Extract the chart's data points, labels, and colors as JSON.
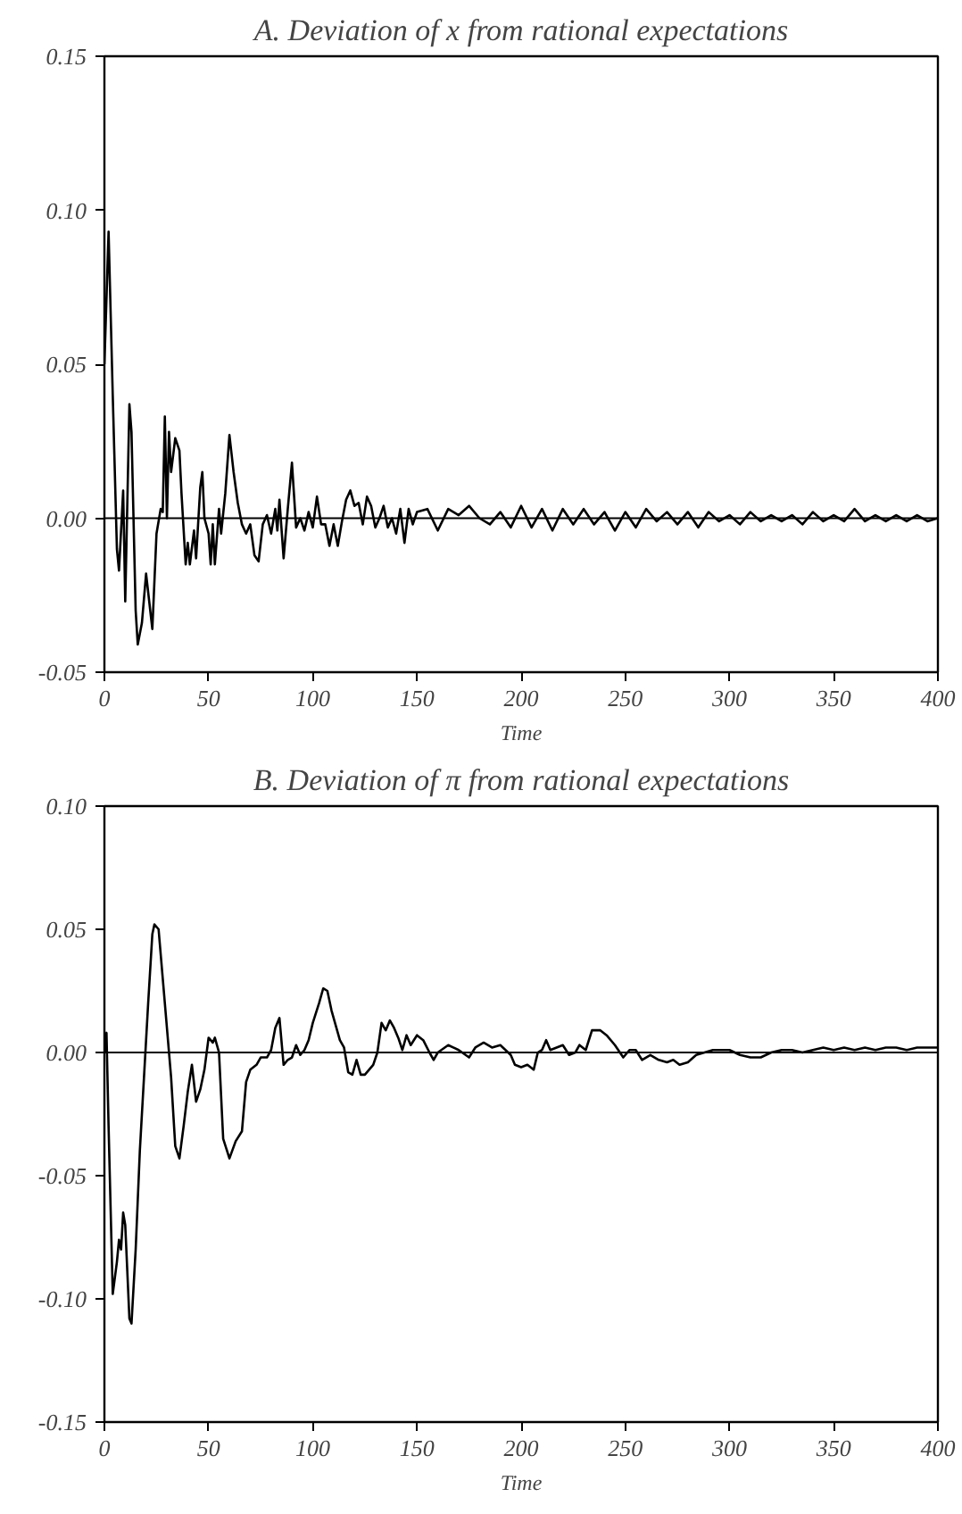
{
  "chart_data": [
    {
      "type": "line",
      "title": "A. Deviation of x from rational expectations",
      "xlabel": "Time",
      "xlim": [
        0,
        400
      ],
      "xticks": [
        0,
        50,
        100,
        150,
        200,
        250,
        300,
        350,
        400
      ],
      "ylim": [
        -0.05,
        0.15
      ],
      "yticks": [
        {
          "value": -0.05,
          "label": "-0.05"
        },
        {
          "value": 0,
          "label": "0.00"
        },
        {
          "value": 0.05,
          "label": "0.05"
        },
        {
          "value": 0.1,
          "label": "0.10"
        },
        {
          "value": 0.15,
          "label": "0.15"
        }
      ],
      "grid": false,
      "marker": "none",
      "line_style": "solid",
      "ref_lines": [
        {
          "axis": "y",
          "value": 0,
          "label": null,
          "color": "#000000"
        }
      ],
      "series": [
        {
          "color": "#000000",
          "x": [
            0,
            2,
            4,
            6,
            7,
            9,
            10,
            12,
            13,
            15,
            16,
            18,
            20,
            22,
            23,
            25,
            27,
            28,
            29,
            30,
            31,
            32,
            34,
            36,
            37,
            39,
            40,
            41,
            43,
            44,
            46,
            47,
            48,
            50,
            51,
            52,
            53,
            55,
            56,
            58,
            60,
            62,
            64,
            66,
            68,
            70,
            72,
            74,
            76,
            78,
            80,
            82,
            83,
            84,
            86,
            88,
            90,
            92,
            94,
            96,
            98,
            100,
            102,
            104,
            106,
            108,
            110,
            112,
            114,
            116,
            118,
            120,
            122,
            124,
            126,
            128,
            130,
            132,
            134,
            136,
            138,
            140,
            142,
            144,
            146,
            148,
            150,
            155,
            160,
            165,
            170,
            175,
            180,
            185,
            190,
            195,
            200,
            205,
            210,
            215,
            220,
            225,
            230,
            235,
            240,
            245,
            250,
            255,
            260,
            265,
            270,
            275,
            280,
            285,
            290,
            295,
            300,
            305,
            310,
            315,
            320,
            325,
            330,
            335,
            340,
            345,
            350,
            355,
            360,
            365,
            370,
            375,
            380,
            385,
            390,
            395,
            400
          ],
          "values": [
            0.05,
            0.093,
            0.04,
            -0.01,
            -0.017,
            0.009,
            -0.027,
            0.037,
            0.028,
            -0.03,
            -0.041,
            -0.034,
            -0.018,
            -0.03,
            -0.036,
            -0.005,
            0.003,
            0.002,
            0.033,
            0.0,
            0.028,
            0.015,
            0.026,
            0.022,
            0.008,
            -0.015,
            -0.008,
            -0.015,
            -0.004,
            -0.013,
            0.01,
            0.015,
            0.0,
            -0.005,
            -0.015,
            -0.002,
            -0.015,
            0.003,
            -0.005,
            0.008,
            0.027,
            0.015,
            0.005,
            -0.002,
            -0.005,
            -0.002,
            -0.012,
            -0.014,
            -0.002,
            0.001,
            -0.005,
            0.003,
            -0.004,
            0.006,
            -0.013,
            0.003,
            0.018,
            -0.003,
            0.0,
            -0.004,
            0.002,
            -0.003,
            0.007,
            -0.002,
            -0.002,
            -0.009,
            -0.002,
            -0.009,
            -0.001,
            0.006,
            0.009,
            0.004,
            0.005,
            -0.002,
            0.007,
            0.004,
            -0.003,
            0.0,
            0.004,
            -0.003,
            0.0,
            -0.005,
            0.003,
            -0.008,
            0.003,
            -0.002,
            0.002,
            0.003,
            -0.004,
            0.003,
            0.001,
            0.004,
            0.0,
            -0.002,
            0.002,
            -0.003,
            0.004,
            -0.003,
            0.003,
            -0.004,
            0.003,
            -0.002,
            0.003,
            -0.002,
            0.002,
            -0.004,
            0.002,
            -0.003,
            0.003,
            -0.001,
            0.002,
            -0.002,
            0.002,
            -0.003,
            0.002,
            -0.001,
            0.001,
            -0.002,
            0.002,
            -0.001,
            0.001,
            -0.001,
            0.001,
            -0.002,
            0.002,
            -0.001,
            0.001,
            -0.001,
            0.003,
            -0.001,
            0.001,
            -0.001,
            0.001,
            -0.001,
            0.001,
            -0.001,
            0.0
          ]
        }
      ]
    },
    {
      "type": "line",
      "title": "B. Deviation of π from rational expectations",
      "xlabel": "Time",
      "xlim": [
        0,
        400
      ],
      "xticks": [
        0,
        50,
        100,
        150,
        200,
        250,
        300,
        350,
        400
      ],
      "ylim": [
        -0.15,
        0.1
      ],
      "yticks": [
        {
          "value": -0.15,
          "label": "-0.15"
        },
        {
          "value": -0.1,
          "label": "-0.10"
        },
        {
          "value": -0.05,
          "label": "-0.05"
        },
        {
          "value": 0,
          "label": "0.00"
        },
        {
          "value": 0.05,
          "label": "0.05"
        },
        {
          "value": 0.1,
          "label": "0.10"
        }
      ],
      "grid": false,
      "marker": "none",
      "line_style": "solid",
      "ref_lines": [
        {
          "axis": "y",
          "value": 0,
          "label": null,
          "color": "#000000"
        }
      ],
      "series": [
        {
          "color": "#000000",
          "x": [
            0,
            1,
            2,
            4,
            6,
            7,
            8,
            9,
            10,
            12,
            13,
            15,
            17,
            19,
            21,
            23,
            24,
            26,
            28,
            30,
            32,
            34,
            36,
            38,
            40,
            42,
            44,
            46,
            48,
            50,
            52,
            53,
            55,
            57,
            60,
            63,
            66,
            68,
            70,
            73,
            75,
            78,
            80,
            82,
            84,
            86,
            88,
            90,
            92,
            94,
            96,
            98,
            100,
            103,
            105,
            107,
            109,
            111,
            113,
            115,
            117,
            119,
            121,
            123,
            125,
            127,
            129,
            131,
            133,
            135,
            137,
            139,
            141,
            143,
            145,
            147,
            150,
            153,
            156,
            158,
            160,
            165,
            170,
            175,
            178,
            182,
            186,
            190,
            195,
            197,
            200,
            203,
            206,
            208,
            210,
            212,
            214,
            217,
            220,
            223,
            226,
            228,
            231,
            234,
            238,
            241,
            245,
            249,
            252,
            255,
            258,
            262,
            266,
            270,
            273,
            276,
            280,
            284,
            288,
            292,
            296,
            300,
            305,
            310,
            315,
            320,
            325,
            330,
            335,
            340,
            345,
            350,
            355,
            360,
            365,
            370,
            375,
            380,
            385,
            390,
            395,
            400
          ],
          "values": [
            0.0,
            0.008,
            -0.03,
            -0.098,
            -0.085,
            -0.076,
            -0.08,
            -0.065,
            -0.07,
            -0.108,
            -0.11,
            -0.08,
            -0.04,
            -0.01,
            0.02,
            0.048,
            0.052,
            0.05,
            0.03,
            0.01,
            -0.01,
            -0.038,
            -0.043,
            -0.03,
            -0.016,
            -0.005,
            -0.02,
            -0.015,
            -0.007,
            0.006,
            0.004,
            0.006,
            0.0,
            -0.035,
            -0.043,
            -0.036,
            -0.032,
            -0.012,
            -0.007,
            -0.005,
            -0.002,
            -0.002,
            0.001,
            0.01,
            0.014,
            -0.005,
            -0.003,
            -0.002,
            0.003,
            -0.001,
            0.001,
            0.005,
            0.012,
            0.02,
            0.026,
            0.025,
            0.017,
            0.011,
            0.005,
            0.002,
            -0.008,
            -0.009,
            -0.003,
            -0.009,
            -0.009,
            -0.007,
            -0.005,
            0.0,
            0.012,
            0.009,
            0.013,
            0.01,
            0.006,
            0.001,
            0.007,
            0.003,
            0.007,
            0.005,
            0.0,
            -0.003,
            0.0,
            0.003,
            0.001,
            -0.002,
            0.002,
            0.004,
            0.002,
            0.003,
            -0.001,
            -0.005,
            -0.006,
            -0.005,
            -0.007,
            0.0,
            0.001,
            0.005,
            0.001,
            0.002,
            0.003,
            -0.001,
            0.0,
            0.003,
            0.001,
            0.009,
            0.009,
            0.007,
            0.003,
            -0.002,
            0.001,
            0.001,
            -0.003,
            -0.001,
            -0.003,
            -0.004,
            -0.003,
            -0.005,
            -0.004,
            -0.001,
            0.0,
            0.001,
            0.001,
            0.001,
            -0.001,
            -0.002,
            -0.002,
            0.0,
            0.001,
            0.001,
            0.0,
            0.001,
            0.002,
            0.001,
            0.002,
            0.001,
            0.002,
            0.001,
            0.002,
            0.002,
            0.001,
            0.002,
            0.002,
            0.002
          ]
        }
      ]
    }
  ]
}
